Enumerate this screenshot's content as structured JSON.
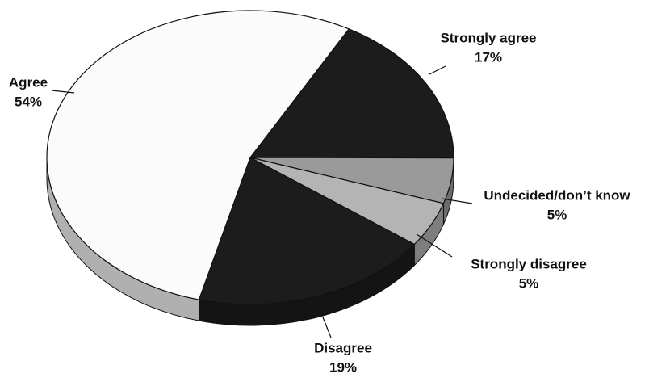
{
  "chart_data": {
    "type": "pie",
    "categories": [
      "Strongly agree",
      "Undecided/don’t know",
      "Strongly disagree",
      "Disagree",
      "Agree"
    ],
    "values": [
      17,
      5,
      5,
      19,
      54
    ],
    "value_labels": [
      "17%",
      "5%",
      "5%",
      "19%",
      "54%"
    ],
    "colors": [
      "#1c1c1c",
      "#9a9a9a",
      "#b4b4b4",
      "#1c1c1c",
      "#fbfbfb"
    ]
  }
}
